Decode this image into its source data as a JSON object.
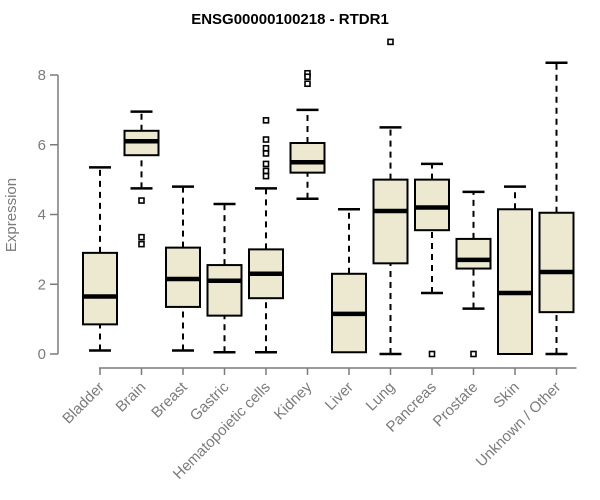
{
  "chart_data": {
    "type": "boxplot",
    "title": "ENSG00000100218 - RTDR1",
    "xlabel": "",
    "ylabel": "Expression",
    "ylim": [
      0,
      8
    ],
    "yticks": [
      0,
      2,
      4,
      6,
      8
    ],
    "grid": false,
    "legend": "none",
    "categories": [
      "Bladder",
      "Brain",
      "Breast",
      "Gastric",
      "Hematopoietic cells",
      "Kidney",
      "Liver",
      "Lung",
      "Pancreas",
      "Prostate",
      "Skin",
      "Unknown / Other"
    ],
    "series": [
      {
        "name": "Bladder",
        "min": 0.1,
        "q1": 0.85,
        "median": 1.65,
        "q3": 2.9,
        "max": 5.35,
        "outliers": []
      },
      {
        "name": "Brain",
        "min": 4.75,
        "q1": 5.7,
        "median": 6.1,
        "q3": 6.4,
        "max": 6.95,
        "outliers": [
          4.4,
          3.35,
          3.15
        ]
      },
      {
        "name": "Breast",
        "min": 0.1,
        "q1": 1.35,
        "median": 2.15,
        "q3": 3.05,
        "max": 4.8,
        "outliers": []
      },
      {
        "name": "Gastric",
        "min": 0.05,
        "q1": 1.1,
        "median": 2.1,
        "q3": 2.55,
        "max": 4.3,
        "outliers": []
      },
      {
        "name": "Hematopoietic cells",
        "min": 0.05,
        "q1": 1.6,
        "median": 2.3,
        "q3": 3.0,
        "max": 4.75,
        "outliers": [
          6.7,
          6.15,
          5.9,
          5.75,
          5.45,
          5.25,
          5.1
        ]
      },
      {
        "name": "Kidney",
        "min": 4.45,
        "q1": 5.2,
        "median": 5.5,
        "q3": 6.05,
        "max": 7.0,
        "outliers": [
          8.05,
          7.95,
          7.75
        ]
      },
      {
        "name": "Liver",
        "min": 0.05,
        "q1": 0.05,
        "median": 1.15,
        "q3": 2.3,
        "max": 4.15,
        "outliers": []
      },
      {
        "name": "Lung",
        "min": 0.0,
        "q1": 2.6,
        "median": 4.1,
        "q3": 5.0,
        "max": 6.5,
        "outliers": [
          8.95
        ]
      },
      {
        "name": "Pancreas",
        "min": 1.75,
        "q1": 3.55,
        "median": 4.2,
        "q3": 5.0,
        "max": 5.45,
        "outliers": [
          0.0
        ]
      },
      {
        "name": "Prostate",
        "min": 1.3,
        "q1": 2.45,
        "median": 2.7,
        "q3": 3.3,
        "max": 4.65,
        "outliers": [
          0.0
        ]
      },
      {
        "name": "Skin",
        "min": 0.0,
        "q1": 0.0,
        "median": 1.75,
        "q3": 4.15,
        "max": 4.8,
        "outliers": []
      },
      {
        "name": "Unknown / Other",
        "min": 0.0,
        "q1": 1.2,
        "median": 2.35,
        "q3": 4.05,
        "max": 8.35,
        "outliers": []
      }
    ]
  },
  "colors": {
    "box_fill": "#EDE8D0",
    "box_stroke": "#000000",
    "median_stroke": "#000000",
    "whisker_stroke": "#000000",
    "outlier_stroke": "#000000",
    "outlier_fill": "#ffffff",
    "axis": "#7b7b7b",
    "tick_label": "#7b7b7b",
    "title": "#000000",
    "background": "#ffffff"
  }
}
